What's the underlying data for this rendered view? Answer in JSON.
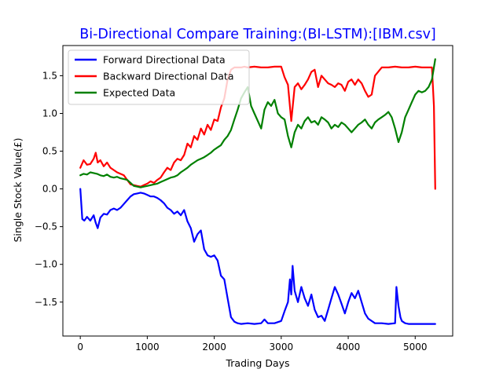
{
  "chart_data": {
    "type": "line",
    "title": "Bi-Directional Compare Training:(BI-LSTM):[IBM.csv]",
    "title_color": "#0000ff",
    "xlabel": "Trading Days",
    "ylabel": "Single Stock Value(£)",
    "xlim": [
      -260,
      5560
    ],
    "ylim": [
      -1.95,
      1.9
    ],
    "xticks": [
      0,
      1000,
      2000,
      3000,
      4000,
      5000
    ],
    "xtick_labels": [
      "0",
      "1000",
      "2000",
      "3000",
      "4000",
      "5000"
    ],
    "yticks": [
      -1.5,
      -1.0,
      -0.5,
      0.0,
      0.5,
      1.0,
      1.5
    ],
    "ytick_labels": [
      "−1.5",
      "−1.0",
      "−0.5",
      "0.0",
      "0.5",
      "1.0",
      "1.5"
    ],
    "grid": false,
    "legend_position": "top-left",
    "series": [
      {
        "name": "Forward Directional Data",
        "color": "#0000ff",
        "x": [
          0,
          30,
          60,
          100,
          150,
          200,
          230,
          260,
          300,
          350,
          400,
          450,
          500,
          550,
          600,
          650,
          700,
          750,
          800,
          850,
          900,
          950,
          1000,
          1050,
          1100,
          1150,
          1200,
          1250,
          1300,
          1350,
          1400,
          1450,
          1500,
          1550,
          1600,
          1650,
          1700,
          1750,
          1800,
          1850,
          1900,
          1950,
          2000,
          2050,
          2100,
          2150,
          2200,
          2250,
          2300,
          2350,
          2400,
          2500,
          2600,
          2700,
          2750,
          2800,
          2900,
          3000,
          3050,
          3100,
          3130,
          3150,
          3170,
          3200,
          3250,
          3300,
          3350,
          3400,
          3450,
          3500,
          3550,
          3600,
          3650,
          3700,
          3750,
          3800,
          3850,
          3900,
          3950,
          4000,
          4050,
          4100,
          4150,
          4200,
          4250,
          4300,
          4400,
          4500,
          4600,
          4700,
          4720,
          4750,
          4780,
          4800,
          4850,
          4900,
          5000,
          5100,
          5200,
          5300
        ],
        "y": [
          0.0,
          -0.4,
          -0.42,
          -0.37,
          -0.42,
          -0.35,
          -0.45,
          -0.52,
          -0.38,
          -0.33,
          -0.34,
          -0.28,
          -0.26,
          -0.28,
          -0.25,
          -0.2,
          -0.15,
          -0.1,
          -0.07,
          -0.06,
          -0.05,
          -0.06,
          -0.08,
          -0.1,
          -0.1,
          -0.12,
          -0.15,
          -0.19,
          -0.25,
          -0.28,
          -0.33,
          -0.3,
          -0.35,
          -0.28,
          -0.43,
          -0.52,
          -0.7,
          -0.6,
          -0.55,
          -0.8,
          -0.88,
          -0.9,
          -0.88,
          -0.95,
          -1.15,
          -1.2,
          -1.45,
          -1.7,
          -1.76,
          -1.78,
          -1.79,
          -1.78,
          -1.79,
          -1.78,
          -1.73,
          -1.78,
          -1.78,
          -1.75,
          -1.62,
          -1.5,
          -1.2,
          -1.4,
          -1.02,
          -1.35,
          -1.5,
          -1.3,
          -1.45,
          -1.55,
          -1.4,
          -1.6,
          -1.7,
          -1.68,
          -1.75,
          -1.6,
          -1.45,
          -1.3,
          -1.4,
          -1.52,
          -1.65,
          -1.5,
          -1.38,
          -1.45,
          -1.35,
          -1.5,
          -1.65,
          -1.72,
          -1.78,
          -1.78,
          -1.79,
          -1.78,
          -1.3,
          -1.55,
          -1.7,
          -1.75,
          -1.78,
          -1.79,
          -1.79,
          -1.79,
          -1.79,
          -1.79
        ]
      },
      {
        "name": "Backward Directional Data",
        "color": "#ff0000",
        "x": [
          0,
          50,
          100,
          150,
          200,
          230,
          260,
          300,
          350,
          400,
          450,
          500,
          550,
          600,
          650,
          700,
          750,
          800,
          850,
          900,
          950,
          1000,
          1050,
          1100,
          1150,
          1200,
          1250,
          1300,
          1350,
          1400,
          1450,
          1500,
          1550,
          1600,
          1650,
          1700,
          1750,
          1800,
          1850,
          1900,
          1950,
          2000,
          2050,
          2100,
          2150,
          2200,
          2250,
          2300,
          2350,
          2400,
          2450,
          2500,
          2600,
          2700,
          2800,
          2900,
          3000,
          3050,
          3100,
          3150,
          3200,
          3250,
          3300,
          3350,
          3400,
          3450,
          3500,
          3550,
          3600,
          3650,
          3700,
          3750,
          3800,
          3850,
          3900,
          3950,
          4000,
          4050,
          4100,
          4150,
          4200,
          4250,
          4300,
          4350,
          4400,
          4500,
          4600,
          4700,
          4800,
          4900,
          5000,
          5100,
          5200,
          5250,
          5280,
          5300
        ],
        "y": [
          0.28,
          0.38,
          0.32,
          0.33,
          0.4,
          0.48,
          0.35,
          0.38,
          0.3,
          0.35,
          0.28,
          0.25,
          0.22,
          0.2,
          0.18,
          0.12,
          0.06,
          0.05,
          0.04,
          0.03,
          0.05,
          0.07,
          0.1,
          0.08,
          0.12,
          0.15,
          0.22,
          0.28,
          0.25,
          0.35,
          0.4,
          0.38,
          0.45,
          0.6,
          0.55,
          0.7,
          0.65,
          0.8,
          0.72,
          0.85,
          0.78,
          0.92,
          0.9,
          1.08,
          1.2,
          1.45,
          1.58,
          1.61,
          1.61,
          1.61,
          1.62,
          1.61,
          1.62,
          1.61,
          1.61,
          1.62,
          1.62,
          1.48,
          1.38,
          0.9,
          1.35,
          1.4,
          1.32,
          1.38,
          1.45,
          1.55,
          1.58,
          1.35,
          1.5,
          1.45,
          1.4,
          1.38,
          1.35,
          1.4,
          1.38,
          1.3,
          1.42,
          1.45,
          1.38,
          1.45,
          1.4,
          1.3,
          1.22,
          1.25,
          1.5,
          1.61,
          1.61,
          1.62,
          1.61,
          1.61,
          1.62,
          1.61,
          1.61,
          1.61,
          1.1,
          0.0
        ]
      },
      {
        "name": "Expected Data",
        "color": "#008000",
        "x": [
          0,
          50,
          100,
          150,
          200,
          250,
          300,
          350,
          400,
          450,
          500,
          550,
          600,
          650,
          700,
          750,
          800,
          850,
          900,
          950,
          1000,
          1050,
          1100,
          1150,
          1200,
          1250,
          1300,
          1350,
          1400,
          1450,
          1500,
          1550,
          1600,
          1650,
          1700,
          1750,
          1800,
          1850,
          1900,
          1950,
          2000,
          2050,
          2100,
          2150,
          2200,
          2250,
          2300,
          2350,
          2400,
          2450,
          2500,
          2550,
          2600,
          2650,
          2700,
          2750,
          2800,
          2850,
          2900,
          2950,
          3000,
          3050,
          3100,
          3150,
          3200,
          3250,
          3300,
          3350,
          3400,
          3450,
          3500,
          3550,
          3600,
          3650,
          3700,
          3750,
          3800,
          3850,
          3900,
          3950,
          4000,
          4050,
          4100,
          4150,
          4200,
          4250,
          4300,
          4350,
          4400,
          4450,
          4500,
          4550,
          4600,
          4650,
          4700,
          4750,
          4800,
          4850,
          4900,
          4950,
          5000,
          5050,
          5100,
          5150,
          5200,
          5250,
          5300
        ],
        "y": [
          0.18,
          0.2,
          0.19,
          0.22,
          0.21,
          0.2,
          0.18,
          0.17,
          0.19,
          0.16,
          0.15,
          0.16,
          0.14,
          0.13,
          0.12,
          0.08,
          0.04,
          0.03,
          0.02,
          0.03,
          0.04,
          0.05,
          0.06,
          0.07,
          0.09,
          0.11,
          0.13,
          0.15,
          0.16,
          0.18,
          0.22,
          0.25,
          0.28,
          0.32,
          0.35,
          0.38,
          0.4,
          0.42,
          0.45,
          0.48,
          0.52,
          0.55,
          0.58,
          0.65,
          0.7,
          0.78,
          0.92,
          1.05,
          1.2,
          1.28,
          1.35,
          1.1,
          1.0,
          0.9,
          0.8,
          1.05,
          1.15,
          1.1,
          1.18,
          1.0,
          0.95,
          0.92,
          0.7,
          0.55,
          0.75,
          0.85,
          0.8,
          0.9,
          0.95,
          0.88,
          0.9,
          0.85,
          0.95,
          0.92,
          0.88,
          0.8,
          0.85,
          0.82,
          0.88,
          0.85,
          0.8,
          0.75,
          0.8,
          0.85,
          0.88,
          0.92,
          0.85,
          0.8,
          0.88,
          0.92,
          0.95,
          0.98,
          1.02,
          0.95,
          0.8,
          0.62,
          0.75,
          0.95,
          1.05,
          1.15,
          1.25,
          1.3,
          1.28,
          1.3,
          1.35,
          1.45,
          1.72
        ]
      }
    ]
  }
}
